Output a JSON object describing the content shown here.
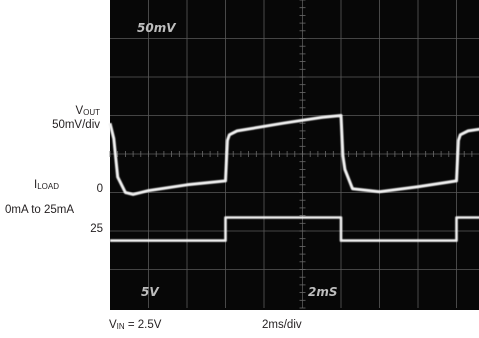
{
  "chart_data": {
    "type": "line",
    "title": "",
    "labels": {
      "vout_main": "V",
      "vout_sub": "OUT",
      "vout_scale": "50mV/div",
      "iload_main": "I",
      "iload_sub": "LOAD",
      "iload_range": "0mA to 25mA",
      "iload_tick_top": "0",
      "iload_tick_bottom": "25",
      "vin_main": "V",
      "vin_sub": "IN",
      "vin_value": " = 2.5V",
      "time_scale": "2ms/div"
    },
    "screen_text": {
      "volt_readout": "50mV",
      "ch2_readout": "5V",
      "time_readout": "2mS"
    },
    "x_divisions": 10,
    "y_divisions": 8,
    "series": [
      {
        "name": "VOUT",
        "x": [
          0,
          0.1,
          0.2,
          0.4,
          0.6,
          1.0,
          2.0,
          3.0,
          3.05,
          3.1,
          3.3,
          4.5,
          5.5,
          6.0,
          6.05,
          6.1,
          6.3,
          7.0,
          8.0,
          9.0,
          9.05,
          9.1,
          9.3,
          10
        ],
        "y": [
          0.8,
          0.4,
          -0.6,
          -1.0,
          -1.05,
          -0.95,
          -0.8,
          -0.7,
          0.35,
          0.5,
          0.6,
          0.8,
          0.95,
          1.0,
          -0.05,
          -0.4,
          -0.9,
          -0.98,
          -0.85,
          -0.7,
          0.35,
          0.5,
          0.6,
          0.7
        ]
      },
      {
        "name": "ILOAD",
        "x": [
          0,
          3.0,
          3.0,
          6.0,
          6.0,
          9.0,
          9.0,
          10
        ],
        "y": [
          -2.25,
          -2.25,
          -1.65,
          -1.65,
          -2.25,
          -2.25,
          -1.65,
          -1.65
        ]
      }
    ]
  }
}
